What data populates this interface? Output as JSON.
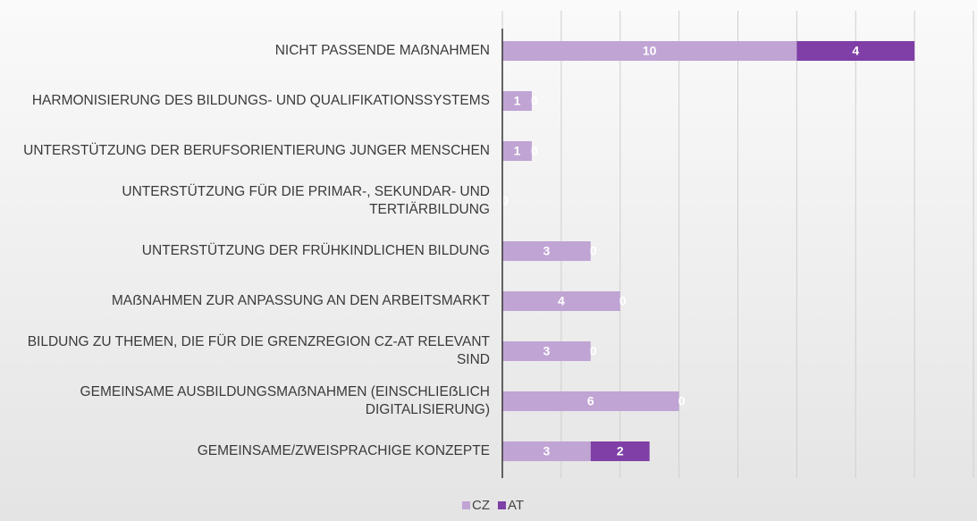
{
  "chart_data": {
    "type": "bar",
    "orientation": "horizontal",
    "stacked": true,
    "categories": [
      "NICHT PASSENDE MAẞNAHMEN",
      "HARMONISIERUNG DES BILDUNGS- UND QUALIFIKATIONSSYSTEMS",
      "UNTERSTÜTZUNG DER BERUFSORIENTIERUNG JUNGER MENSCHEN",
      "UNTERSTÜTZUNG FÜR DIE PRIMAR-, SEKUNDAR- UND TERTIÄRBILDUNG",
      "UNTERSTÜTZUNG DER FRÜHKINDLICHEN BILDUNG",
      "MAẞNAHMEN ZUR ANPASSUNG AN DEN ARBEITSMARKT",
      "BILDUNG ZU THEMEN, DIE FÜR DIE GRENZREGION CZ-AT RELEVANT SIND",
      "GEMEINSAME AUSBILDUNGSMAẞNAHMEN (EINSCHLIEẞLICH DIGITALISIERUNG)",
      "GEMEINSAME/ZWEISPRACHIGE KONZEPTE"
    ],
    "series": [
      {
        "name": "CZ",
        "color": "#c0a4d4",
        "values": [
          10,
          1,
          1,
          0,
          3,
          4,
          3,
          6,
          3
        ]
      },
      {
        "name": "AT",
        "color": "#7f3fa6",
        "values": [
          4,
          0,
          0,
          0,
          0,
          0,
          0,
          0,
          2
        ]
      }
    ],
    "xlim": [
      0,
      16
    ],
    "xticks": [
      0,
      2,
      4,
      6,
      8,
      10,
      12,
      14,
      16
    ],
    "grid": true,
    "legend": "bottom"
  }
}
